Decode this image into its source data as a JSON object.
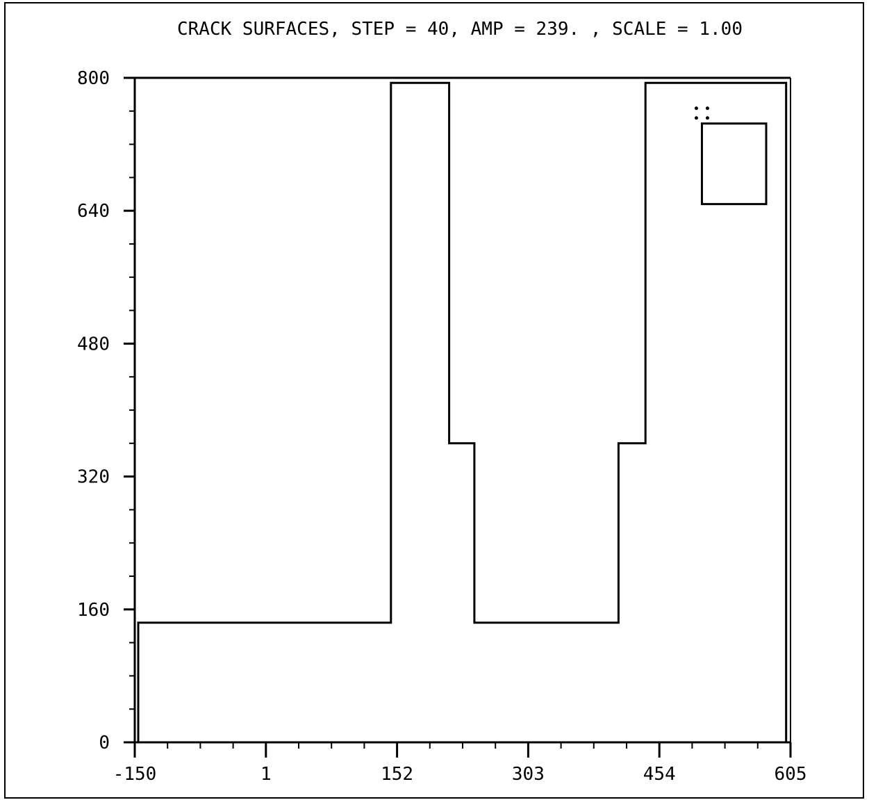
{
  "chart_data": {
    "type": "line",
    "title": "CRACK SURFACES,  STEP = 40,  AMP = 239. ,  SCALE = 1.00",
    "xlabel": "",
    "ylabel": "",
    "xlim": [
      -150,
      605
    ],
    "ylim": [
      0,
      800
    ],
    "x_ticks": [
      "-150",
      "1",
      "152",
      "303",
      "454",
      "605"
    ],
    "x_tick_values": [
      -150,
      1,
      152,
      303,
      454,
      605
    ],
    "y_ticks": [
      "0",
      "160",
      "320",
      "480",
      "640",
      "800"
    ],
    "y_tick_values": [
      0,
      160,
      320,
      480,
      640,
      800
    ],
    "grid": false,
    "legend": "box at top-right with a two-dot marker",
    "series": [
      {
        "points": [
          [
            -146,
            0
          ],
          [
            -146,
            144
          ],
          [
            145,
            144
          ],
          [
            145,
            794
          ],
          [
            212,
            794
          ],
          [
            212,
            360
          ],
          [
            241,
            360
          ],
          [
            241,
            144
          ],
          [
            407,
            144
          ],
          [
            407,
            360
          ],
          [
            438,
            360
          ],
          [
            438,
            794
          ],
          [
            600,
            794
          ],
          [
            600,
            0
          ]
        ]
      }
    ],
    "legend_box": {
      "x": [
        503,
        577
      ],
      "y": [
        648,
        745
      ]
    },
    "colors": {
      "line": "#000000",
      "background": "#ffffff"
    }
  }
}
